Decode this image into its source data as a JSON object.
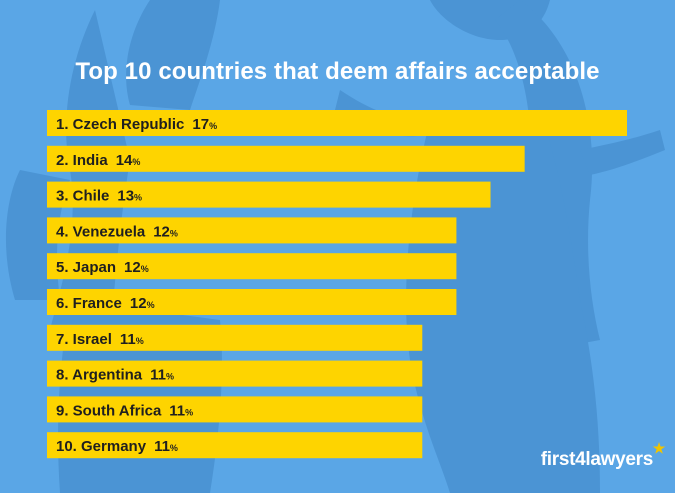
{
  "chart_data": {
    "type": "bar",
    "orientation": "horizontal",
    "title": "Top 10 countries that deem affairs acceptable",
    "categories": [
      "1. Czech Republic",
      "2. India",
      "3. Chile",
      "4. Venezuela",
      "5. Japan",
      "6. France",
      "7. Israel",
      "8. Argentina",
      "9. South Africa",
      "10. Germany"
    ],
    "values": [
      17,
      14,
      13,
      12,
      12,
      12,
      11,
      11,
      11,
      11
    ],
    "value_suffix": "%",
    "xlim": [
      0,
      17
    ],
    "grid": false,
    "legend": "none",
    "bar_color": "#fed400",
    "label_color": "#1f1f1f"
  },
  "colors": {
    "background": "#5aa6e6",
    "title": "#ffffff"
  },
  "brand": {
    "label": "first4lawyers"
  }
}
